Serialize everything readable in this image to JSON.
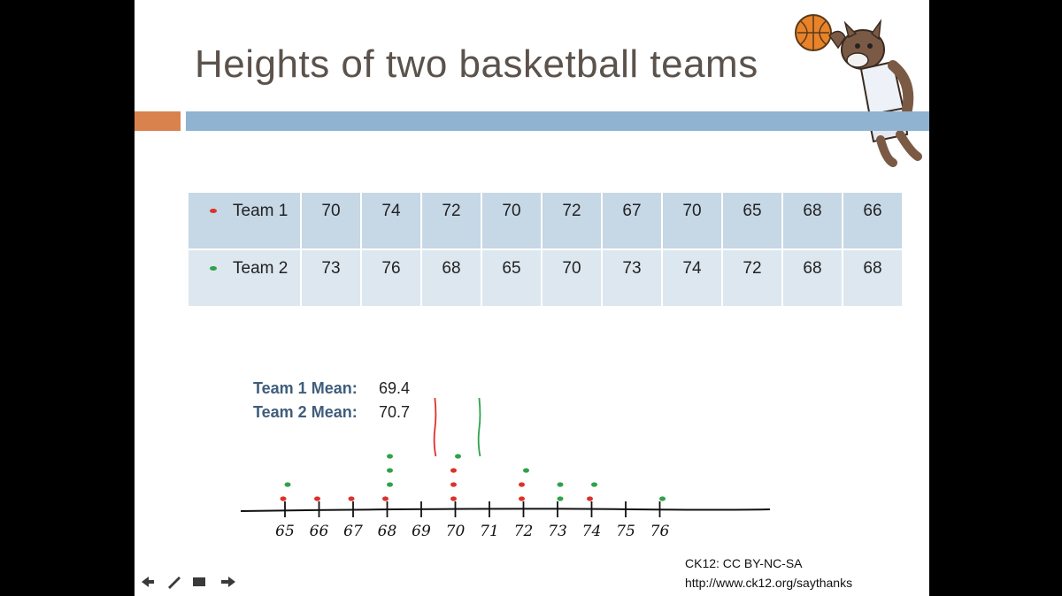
{
  "slide": {
    "title": "Heights of two basketball teams",
    "colors": {
      "orange_bar": "#d9824e",
      "blue_bar": "#8fb3d0",
      "title": "#5b524b"
    },
    "mascot_icon": "wolf-basketball-mascot-icon"
  },
  "table": {
    "rows": [
      {
        "label": "Team 1",
        "color": "#e0302a",
        "values": [
          "70",
          "74",
          "72",
          "70",
          "72",
          "67",
          "70",
          "65",
          "68",
          "66"
        ]
      },
      {
        "label": "Team 2",
        "color": "#2fa24a",
        "values": [
          "73",
          "76",
          "68",
          "65",
          "70",
          "73",
          "74",
          "72",
          "68",
          "68"
        ]
      }
    ]
  },
  "means": {
    "team1_label": "Team 1 Mean:",
    "team1_value": "69.4",
    "team2_label": "Team 2 Mean:",
    "team2_value": "70.7"
  },
  "chart_data": {
    "type": "scatter",
    "subtype": "dot-plot",
    "ticks": [
      "65",
      "66",
      "67",
      "68",
      "69",
      "70",
      "71",
      "72",
      "73",
      "74",
      "75",
      "76"
    ],
    "xlim": [
      65,
      76
    ],
    "series": [
      {
        "name": "Team 1",
        "color": "#e0302a",
        "values": [
          70,
          74,
          72,
          70,
          72,
          67,
          70,
          65,
          68,
          66
        ]
      },
      {
        "name": "Team 2",
        "color": "#2fa24a",
        "values": [
          73,
          76,
          68,
          65,
          70,
          73,
          74,
          72,
          68,
          68
        ]
      }
    ],
    "mean_markers": [
      {
        "series": "Team 1",
        "value": 69.4,
        "color": "#e0302a"
      },
      {
        "series": "Team 2",
        "value": 70.7,
        "color": "#2fa24a"
      }
    ]
  },
  "credit": {
    "line1": "CK12: CC BY-NC-SA",
    "line2": "http://www.ck12.org/saythanks"
  }
}
